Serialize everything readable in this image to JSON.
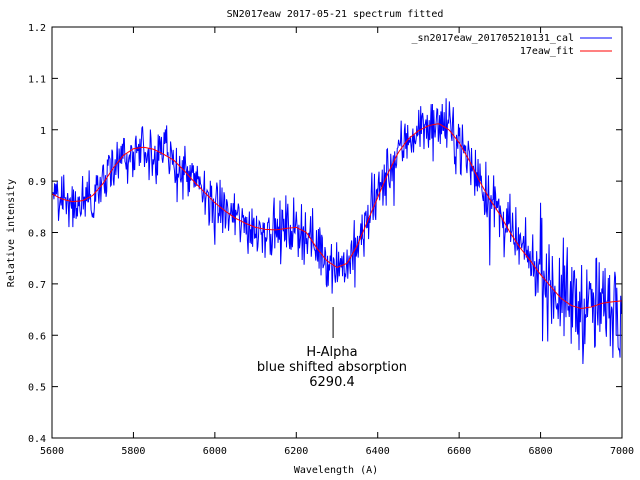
{
  "chart_data": {
    "type": "line",
    "title": "SN2017eaw 2017-05-21 spectrum fitted",
    "xlabel": "Wavelength (A)",
    "ylabel": "Relative intensity",
    "xlim": [
      5600,
      7000
    ],
    "ylim": [
      0.4,
      1.2
    ],
    "xticks": [
      5600,
      5800,
      6000,
      6200,
      6400,
      6600,
      6800,
      7000
    ],
    "yticks": [
      0.4,
      0.5,
      0.6,
      0.7,
      0.8,
      0.9,
      1,
      1.1,
      1.2
    ],
    "legend_position": "top-right",
    "series": [
      {
        "name": "_sn2017eaw_201705210131_cal",
        "color": "#0000ff",
        "style": "noisy",
        "x": [
          5600,
          5625,
          5650,
          5675,
          5700,
          5725,
          5750,
          5775,
          5800,
          5825,
          5850,
          5875,
          5900,
          5925,
          5950,
          5975,
          6000,
          6025,
          6050,
          6075,
          6100,
          6125,
          6150,
          6175,
          6200,
          6225,
          6250,
          6275,
          6300,
          6325,
          6350,
          6375,
          6400,
          6425,
          6450,
          6475,
          6500,
          6525,
          6550,
          6575,
          6600,
          6625,
          6650,
          6675,
          6700,
          6725,
          6750,
          6775,
          6800,
          6825,
          6850,
          6875,
          6900,
          6925,
          6950,
          6975,
          7000
        ],
        "values": [
          0.88,
          0.865,
          0.86,
          0.865,
          0.875,
          0.895,
          0.92,
          0.945,
          0.96,
          0.965,
          0.96,
          0.95,
          0.935,
          0.915,
          0.895,
          0.875,
          0.855,
          0.84,
          0.825,
          0.815,
          0.81,
          0.805,
          0.805,
          0.81,
          0.81,
          0.8,
          0.775,
          0.75,
          0.735,
          0.74,
          0.77,
          0.82,
          0.87,
          0.915,
          0.955,
          0.985,
          1.0,
          1.01,
          1.01,
          1.0,
          0.975,
          0.94,
          0.9,
          0.865,
          0.835,
          0.8,
          0.77,
          0.745,
          0.72,
          0.7,
          0.68,
          0.665,
          0.655,
          0.65,
          0.655,
          0.665,
          0.665
        ]
      },
      {
        "name": "17eaw_fit",
        "color": "#ff0000",
        "style": "smooth",
        "x": [
          5600,
          5625,
          5650,
          5675,
          5700,
          5725,
          5750,
          5775,
          5800,
          5825,
          5850,
          5875,
          5900,
          5925,
          5950,
          5975,
          6000,
          6025,
          6050,
          6075,
          6100,
          6125,
          6150,
          6175,
          6200,
          6225,
          6250,
          6275,
          6300,
          6325,
          6350,
          6375,
          6400,
          6425,
          6450,
          6475,
          6500,
          6525,
          6550,
          6575,
          6600,
          6625,
          6650,
          6675,
          6700,
          6725,
          6750,
          6775,
          6800,
          6825,
          6850,
          6875,
          6900,
          6925,
          6950,
          6975,
          7000
        ],
        "values": [
          0.875,
          0.865,
          0.86,
          0.862,
          0.872,
          0.895,
          0.925,
          0.95,
          0.963,
          0.966,
          0.962,
          0.952,
          0.94,
          0.92,
          0.898,
          0.878,
          0.858,
          0.842,
          0.828,
          0.818,
          0.81,
          0.806,
          0.805,
          0.808,
          0.81,
          0.8,
          0.77,
          0.745,
          0.732,
          0.74,
          0.775,
          0.822,
          0.868,
          0.915,
          0.955,
          0.982,
          0.998,
          1.008,
          1.012,
          1.0,
          0.975,
          0.94,
          0.9,
          0.865,
          0.835,
          0.8,
          0.77,
          0.745,
          0.718,
          0.695,
          0.672,
          0.658,
          0.652,
          0.655,
          0.662,
          0.665,
          0.667
        ]
      }
    ],
    "annotation": {
      "x": 6290.4,
      "lines": [
        "H-Alpha",
        "blue shifted absorption",
        "6290.4"
      ]
    }
  }
}
